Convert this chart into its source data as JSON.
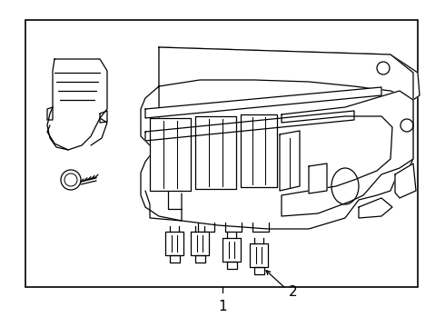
{
  "background_color": "#ffffff",
  "line_color": "#000000",
  "label_1": "1",
  "label_2": "2",
  "fig_width": 4.9,
  "fig_height": 3.6,
  "dpi": 100
}
